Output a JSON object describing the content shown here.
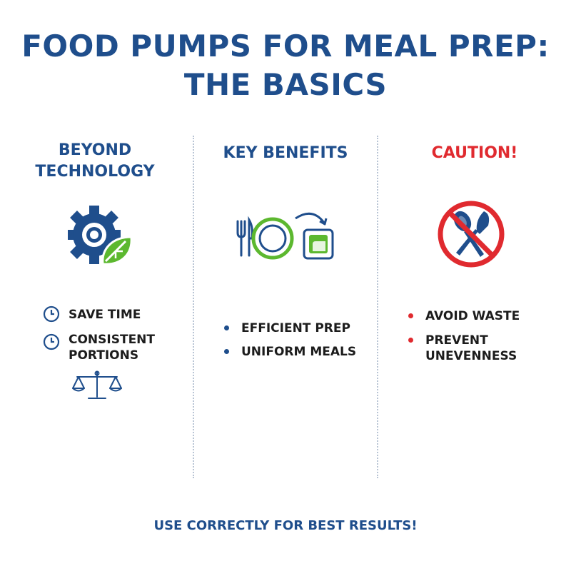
{
  "title": {
    "line1": "FOOD PUMPS FOR MEAL PREP:",
    "line2": "THE BASICS"
  },
  "columns": [
    {
      "heading_line1": "BEYOND",
      "heading_line2": "TECHNOLOGY",
      "icon": "gear-leaf-icon",
      "items": [
        {
          "text": "SAVE TIME",
          "icon": "clock-icon"
        },
        {
          "text_line1": "CONSISTENT",
          "text_line2": "PORTIONS",
          "icon": "clock-icon"
        }
      ],
      "extra_icon": "scale-icon"
    },
    {
      "heading": "KEY BENEFITS",
      "icon": "fork-knife-plate-container-icon",
      "items": [
        {
          "text": "EFFICIENT PREP"
        },
        {
          "text": "UNIFORM MEALS"
        }
      ]
    },
    {
      "heading": "CAUTION!",
      "icon": "no-utensils-icon",
      "items": [
        {
          "text": "AVOID WASTE"
        },
        {
          "text_line1": "PREVENT",
          "text_line2": "UNEVENNESS"
        }
      ]
    }
  ],
  "footer": "USE CORRECTLY FOR BEST RESULTS!",
  "colors": {
    "navy": "#1f4e8c",
    "green": "#5cb82f",
    "red": "#e02a2f",
    "text": "#1c1c1c"
  }
}
